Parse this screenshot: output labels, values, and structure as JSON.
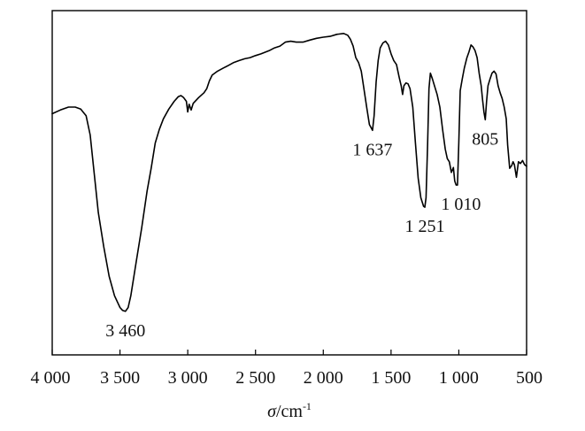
{
  "chart_data": {
    "type": "line",
    "xlabel_symbol": "σ",
    "xlabel_unit": "/cm",
    "xlabel_exp": "-1",
    "ylabel": "",
    "xlim": [
      4000,
      500
    ],
    "ylim": [
      0,
      100
    ],
    "x_reversed": true,
    "grid": false,
    "ticks": [
      {
        "value": 4000,
        "label": "4 000"
      },
      {
        "value": 3500,
        "label": "3 500"
      },
      {
        "value": 3000,
        "label": "3 000"
      },
      {
        "value": 2500,
        "label": "2 500"
      },
      {
        "value": 2000,
        "label": "2 000"
      },
      {
        "value": 1500,
        "label": "1 500"
      },
      {
        "value": 1000,
        "label": "1 000"
      },
      {
        "value": 500,
        "label": "500"
      }
    ],
    "series": [
      {
        "color": "#000000",
        "points": [
          [
            4000,
            69.7
          ],
          [
            3940,
            71.0
          ],
          [
            3880,
            72.0
          ],
          [
            3830,
            72.0
          ],
          [
            3790,
            71.3
          ],
          [
            3750,
            69.0
          ],
          [
            3720,
            62.3
          ],
          [
            3690,
            48.8
          ],
          [
            3660,
            35.3
          ],
          [
            3620,
            23.5
          ],
          [
            3580,
            13.2
          ],
          [
            3540,
            6.4
          ],
          [
            3500,
            2.3
          ],
          [
            3480,
            1.3
          ],
          [
            3460,
            1.0
          ],
          [
            3440,
            2.3
          ],
          [
            3420,
            6.4
          ],
          [
            3380,
            18.2
          ],
          [
            3340,
            30.0
          ],
          [
            3300,
            42.8
          ],
          [
            3270,
            50.7
          ],
          [
            3240,
            59.5
          ],
          [
            3210,
            64.2
          ],
          [
            3180,
            67.9
          ],
          [
            3140,
            71.3
          ],
          [
            3100,
            74.0
          ],
          [
            3070,
            75.6
          ],
          [
            3050,
            76.0
          ],
          [
            3030,
            75.3
          ],
          [
            3010,
            74.0
          ],
          [
            3000,
            70.3
          ],
          [
            2990,
            73.0
          ],
          [
            2975,
            71.0
          ],
          [
            2960,
            73.3
          ],
          [
            2920,
            75.3
          ],
          [
            2880,
            77.0
          ],
          [
            2860,
            78.4
          ],
          [
            2840,
            81.1
          ],
          [
            2820,
            83.1
          ],
          [
            2780,
            84.5
          ],
          [
            2740,
            85.5
          ],
          [
            2700,
            86.5
          ],
          [
            2660,
            87.5
          ],
          [
            2620,
            88.2
          ],
          [
            2580,
            88.8
          ],
          [
            2540,
            89.2
          ],
          [
            2500,
            89.9
          ],
          [
            2460,
            90.5
          ],
          [
            2400,
            91.6
          ],
          [
            2360,
            92.6
          ],
          [
            2320,
            93.2
          ],
          [
            2280,
            94.6
          ],
          [
            2240,
            94.9
          ],
          [
            2200,
            94.6
          ],
          [
            2150,
            94.6
          ],
          [
            2100,
            95.3
          ],
          [
            2050,
            95.9
          ],
          [
            2000,
            96.3
          ],
          [
            1950,
            96.6
          ],
          [
            1900,
            97.3
          ],
          [
            1850,
            97.6
          ],
          [
            1820,
            97.0
          ],
          [
            1800,
            95.6
          ],
          [
            1780,
            93.2
          ],
          [
            1760,
            89.2
          ],
          [
            1740,
            87.5
          ],
          [
            1720,
            84.5
          ],
          [
            1700,
            78.4
          ],
          [
            1680,
            72.0
          ],
          [
            1660,
            65.9
          ],
          [
            1637,
            63.9
          ],
          [
            1625,
            69.0
          ],
          [
            1610,
            80.7
          ],
          [
            1595,
            88.2
          ],
          [
            1580,
            92.6
          ],
          [
            1560,
            94.3
          ],
          [
            1540,
            94.9
          ],
          [
            1520,
            93.6
          ],
          [
            1500,
            90.5
          ],
          [
            1480,
            88.2
          ],
          [
            1460,
            86.8
          ],
          [
            1440,
            82.4
          ],
          [
            1425,
            79.4
          ],
          [
            1415,
            76.4
          ],
          [
            1405,
            79.4
          ],
          [
            1390,
            80.4
          ],
          [
            1375,
            80.1
          ],
          [
            1360,
            78.4
          ],
          [
            1340,
            72.0
          ],
          [
            1320,
            59.5
          ],
          [
            1300,
            47.3
          ],
          [
            1280,
            40.5
          ],
          [
            1260,
            37.5
          ],
          [
            1251,
            37.2
          ],
          [
            1242,
            40.5
          ],
          [
            1230,
            59.5
          ],
          [
            1220,
            78.4
          ],
          [
            1210,
            83.8
          ],
          [
            1195,
            81.8
          ],
          [
            1180,
            79.4
          ],
          [
            1160,
            76.4
          ],
          [
            1140,
            72.0
          ],
          [
            1120,
            64.2
          ],
          [
            1100,
            57.4
          ],
          [
            1085,
            54.1
          ],
          [
            1070,
            53.0
          ],
          [
            1055,
            49.3
          ],
          [
            1040,
            51.0
          ],
          [
            1030,
            46.3
          ],
          [
            1020,
            44.9
          ],
          [
            1010,
            44.9
          ],
          [
            1000,
            59.5
          ],
          [
            990,
            77.7
          ],
          [
            975,
            81.8
          ],
          [
            960,
            85.5
          ],
          [
            940,
            89.2
          ],
          [
            925,
            91.2
          ],
          [
            910,
            93.6
          ],
          [
            895,
            92.9
          ],
          [
            880,
            91.6
          ],
          [
            865,
            89.2
          ],
          [
            850,
            83.8
          ],
          [
            835,
            79.4
          ],
          [
            825,
            74.7
          ],
          [
            815,
            70.3
          ],
          [
            805,
            67.6
          ],
          [
            795,
            74.0
          ],
          [
            785,
            79.4
          ],
          [
            770,
            81.8
          ],
          [
            755,
            83.8
          ],
          [
            740,
            84.5
          ],
          [
            725,
            83.5
          ],
          [
            710,
            79.4
          ],
          [
            695,
            77.0
          ],
          [
            680,
            75.0
          ],
          [
            665,
            72.0
          ],
          [
            650,
            67.9
          ],
          [
            640,
            58.8
          ],
          [
            625,
            50.7
          ],
          [
            610,
            51.7
          ],
          [
            600,
            53.0
          ],
          [
            590,
            52.0
          ],
          [
            575,
            47.6
          ],
          [
            560,
            53.0
          ],
          [
            545,
            52.4
          ],
          [
            530,
            53.4
          ],
          [
            515,
            52.0
          ],
          [
            500,
            51.4
          ]
        ]
      }
    ],
    "annotations": [
      {
        "label": "3 460",
        "x": 3460,
        "y": 1.0,
        "position": "below"
      },
      {
        "label": "1 637",
        "x": 1637,
        "y": 63.9,
        "position": "below"
      },
      {
        "label": "1 251",
        "x": 1251,
        "y": 37.2,
        "position": "below"
      },
      {
        "label": "1 010",
        "x": 1010,
        "y": 44.9,
        "position": "below-right"
      },
      {
        "label": "805",
        "x": 805,
        "y": 67.6,
        "position": "below"
      }
    ]
  }
}
